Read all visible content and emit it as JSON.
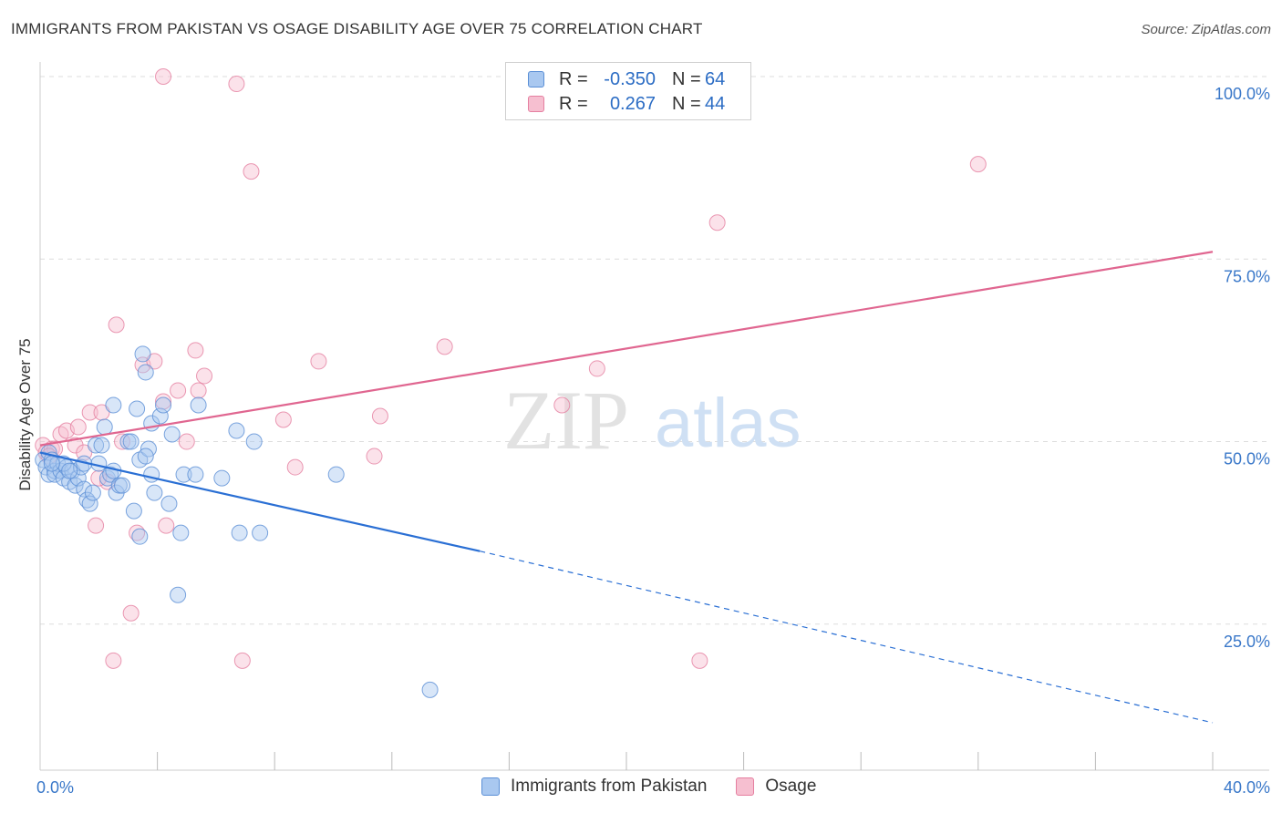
{
  "title": "IMMIGRANTS FROM PAKISTAN VS OSAGE DISABILITY AGE OVER 75 CORRELATION CHART",
  "source": "Source: ZipAtlas.com",
  "watermark": {
    "zip": "ZIP",
    "atlas": "atlas"
  },
  "legend": {
    "rows": [
      {
        "r_label": "R =",
        "r_value": "-0.350",
        "n_label": "N =",
        "n_value": "64"
      },
      {
        "r_label": "R =",
        "r_value": "0.267",
        "n_label": "N =",
        "n_value": "44"
      }
    ]
  },
  "colors": {
    "blue_fill": "#a9c8f0",
    "blue_stroke": "#5b8fd6",
    "blue_line": "#2a6fd4",
    "pink_fill": "#f6bfd0",
    "pink_stroke": "#e57fa0",
    "pink_line": "#e06690",
    "grid": "#dddddd",
    "tick_text": "#3a78c9"
  },
  "chart_data": {
    "type": "scatter",
    "title": "IMMIGRANTS FROM PAKISTAN VS OSAGE DISABILITY AGE OVER 75 CORRELATION CHART",
    "xlabel": "",
    "ylabel": "Disability Age Over 75",
    "xlim": [
      0,
      40
    ],
    "ylim": [
      5,
      102
    ],
    "x_tick_labels": [
      {
        "value": 0,
        "label": "0.0%"
      },
      {
        "value": 40,
        "label": "40.0%"
      }
    ],
    "y_tick_labels": [
      {
        "value": 25,
        "label": "25.0%"
      },
      {
        "value": 50,
        "label": "50.0%"
      },
      {
        "value": 75,
        "label": "75.0%"
      },
      {
        "value": 100,
        "label": "100.0%"
      }
    ],
    "series": [
      {
        "name": "Immigrants from Pakistan",
        "color": "blue",
        "R": -0.35,
        "N": 64,
        "trend": {
          "x0": 0,
          "y0": 48.5,
          "x1": 15,
          "y1": 35,
          "dash_to_x": 40,
          "dash_to_y": 11.5
        },
        "points": [
          [
            0.1,
            47.5
          ],
          [
            0.2,
            46.5
          ],
          [
            0.3,
            45.5
          ],
          [
            0.3,
            48.5
          ],
          [
            0.4,
            47.5
          ],
          [
            0.5,
            46
          ],
          [
            0.5,
            45.5
          ],
          [
            0.6,
            47
          ],
          [
            0.7,
            46
          ],
          [
            0.8,
            45
          ],
          [
            0.9,
            46.5
          ],
          [
            1.0,
            44.5
          ],
          [
            1.1,
            46
          ],
          [
            1.2,
            44
          ],
          [
            1.3,
            45
          ],
          [
            1.4,
            46.5
          ],
          [
            1.5,
            43.5
          ],
          [
            1.6,
            42
          ],
          [
            1.7,
            41.5
          ],
          [
            1.8,
            43
          ],
          [
            1.9,
            49.5
          ],
          [
            2.0,
            47
          ],
          [
            2.1,
            49.5
          ],
          [
            2.2,
            52
          ],
          [
            2.3,
            45
          ],
          [
            2.4,
            45.5
          ],
          [
            2.5,
            55
          ],
          [
            2.6,
            43
          ],
          [
            2.7,
            44
          ],
          [
            2.8,
            44
          ],
          [
            3.0,
            50
          ],
          [
            3.1,
            50
          ],
          [
            3.2,
            40.5
          ],
          [
            3.3,
            54.5
          ],
          [
            3.4,
            37
          ],
          [
            3.4,
            47.5
          ],
          [
            3.5,
            62
          ],
          [
            3.6,
            59.5
          ],
          [
            3.7,
            49
          ],
          [
            3.8,
            45.5
          ],
          [
            3.8,
            52.5
          ],
          [
            3.9,
            43
          ],
          [
            4.1,
            53.5
          ],
          [
            4.2,
            55
          ],
          [
            4.4,
            41.5
          ],
          [
            4.5,
            51
          ],
          [
            4.7,
            29
          ],
          [
            4.8,
            37.5
          ],
          [
            4.9,
            45.5
          ],
          [
            5.3,
            45.5
          ],
          [
            5.4,
            55
          ],
          [
            6.2,
            45
          ],
          [
            6.7,
            51.5
          ],
          [
            6.8,
            37.5
          ],
          [
            7.3,
            50
          ],
          [
            7.5,
            37.5
          ],
          [
            10.1,
            45.5
          ],
          [
            13.3,
            16
          ],
          [
            0.8,
            47
          ],
          [
            1.5,
            47
          ],
          [
            2.5,
            46
          ],
          [
            0.4,
            47
          ],
          [
            3.6,
            48
          ],
          [
            1.0,
            46
          ]
        ]
      },
      {
        "name": "Osage",
        "color": "pink",
        "R": 0.267,
        "N": 44,
        "trend": {
          "x0": 0,
          "y0": 49.5,
          "x1": 40,
          "y1": 76
        },
        "points": [
          [
            0.1,
            49.5
          ],
          [
            0.2,
            48.5
          ],
          [
            0.4,
            49
          ],
          [
            0.5,
            49
          ],
          [
            0.7,
            51
          ],
          [
            0.9,
            51.5
          ],
          [
            1.2,
            49.5
          ],
          [
            1.3,
            52
          ],
          [
            1.5,
            48.5
          ],
          [
            1.7,
            54
          ],
          [
            1.9,
            38.5
          ],
          [
            2.1,
            54
          ],
          [
            2.3,
            44.5
          ],
          [
            2.5,
            20
          ],
          [
            2.6,
            66
          ],
          [
            2.8,
            50
          ],
          [
            3.1,
            26.5
          ],
          [
            3.3,
            37.5
          ],
          [
            3.5,
            60.5
          ],
          [
            3.9,
            61
          ],
          [
            4.2,
            55.5
          ],
          [
            4.3,
            38.5
          ],
          [
            4.7,
            57
          ],
          [
            5.0,
            50
          ],
          [
            5.3,
            62.5
          ],
          [
            5.4,
            57
          ],
          [
            5.6,
            59
          ],
          [
            6.7,
            99
          ],
          [
            6.9,
            20
          ],
          [
            7.2,
            87
          ],
          [
            8.3,
            53
          ],
          [
            8.7,
            46.5
          ],
          [
            9.5,
            61
          ],
          [
            11.4,
            48
          ],
          [
            11.6,
            53.5
          ],
          [
            13.8,
            63
          ],
          [
            17.8,
            55
          ],
          [
            19.0,
            60
          ],
          [
            22.5,
            20
          ],
          [
            23.1,
            80
          ],
          [
            32.0,
            88
          ],
          [
            4.2,
            100
          ],
          [
            0.3,
            48
          ],
          [
            2.0,
            45
          ]
        ]
      }
    ]
  },
  "bottom_legend": [
    {
      "label": "Immigrants from Pakistan",
      "color": "blue"
    },
    {
      "label": "Osage",
      "color": "pink"
    }
  ]
}
